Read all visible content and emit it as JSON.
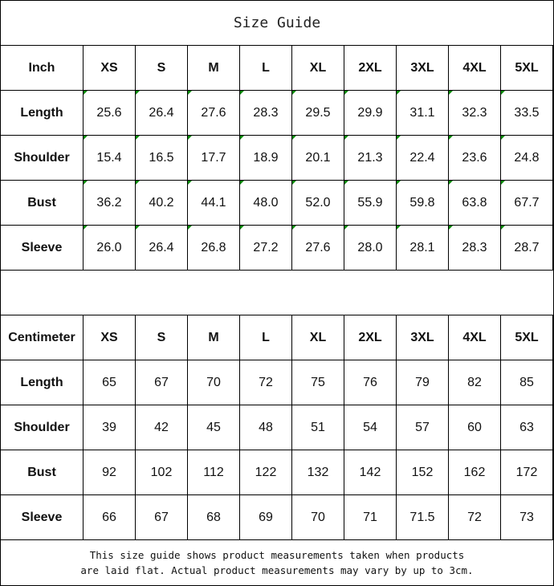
{
  "title": "Size Guide",
  "sizes": [
    "XS",
    "S",
    "M",
    "L",
    "XL",
    "2XL",
    "3XL",
    "4XL",
    "5XL"
  ],
  "inch": {
    "unit_label": "Inch",
    "rows": [
      {
        "label": "Length",
        "values": [
          "25.6",
          "26.4",
          "27.6",
          "28.3",
          "29.5",
          "29.9",
          "31.1",
          "32.3",
          "33.5"
        ]
      },
      {
        "label": "Shoulder",
        "values": [
          "15.4",
          "16.5",
          "17.7",
          "18.9",
          "20.1",
          "21.3",
          "22.4",
          "23.6",
          "24.8"
        ]
      },
      {
        "label": "Bust",
        "values": [
          "36.2",
          "40.2",
          "44.1",
          "48.0",
          "52.0",
          "55.9",
          "59.8",
          "63.8",
          "67.7"
        ]
      },
      {
        "label": "Sleeve",
        "values": [
          "26.0",
          "26.4",
          "26.8",
          "27.2",
          "27.6",
          "28.0",
          "28.1",
          "28.3",
          "28.7"
        ]
      }
    ]
  },
  "cm": {
    "unit_label": "Centimeter",
    "rows": [
      {
        "label": "Length",
        "values": [
          "65",
          "67",
          "70",
          "72",
          "75",
          "76",
          "79",
          "82",
          "85"
        ]
      },
      {
        "label": "Shoulder",
        "values": [
          "39",
          "42",
          "45",
          "48",
          "51",
          "54",
          "57",
          "60",
          "63"
        ]
      },
      {
        "label": "Bust",
        "values": [
          "92",
          "102",
          "112",
          "122",
          "132",
          "142",
          "152",
          "162",
          "172"
        ]
      },
      {
        "label": "Sleeve",
        "values": [
          "66",
          "67",
          "68",
          "69",
          "70",
          "71",
          "71.5",
          "72",
          "73"
        ]
      }
    ]
  },
  "footnote": {
    "line1": "This size guide shows product measurements taken when products",
    "line2": "are laid flat. Actual product measurements may vary by up to 3cm."
  },
  "colors": {
    "cell_marker": "#0a8a0a"
  }
}
